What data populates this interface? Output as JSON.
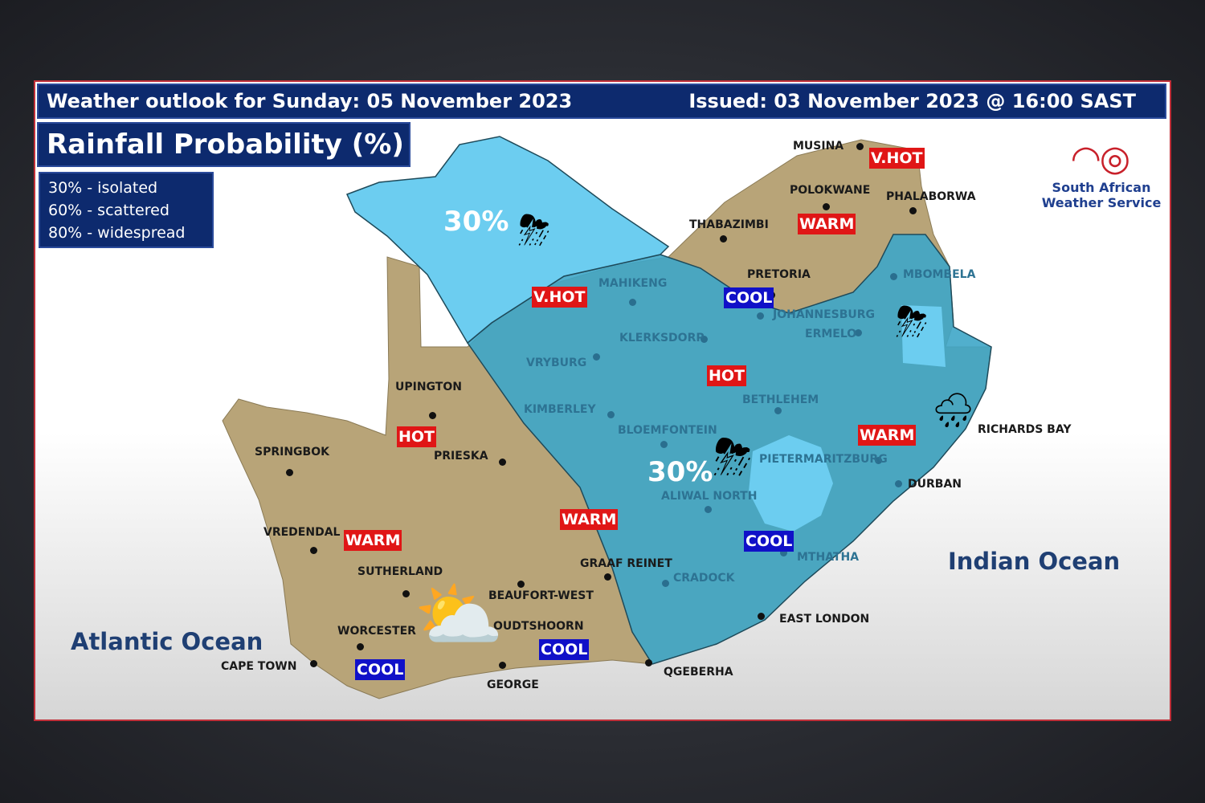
{
  "header": {
    "title": "Weather outlook for Sunday: 05 November 2023",
    "issued": "Issued: 03 November 2023 @ 16:00 SAST"
  },
  "panel_title": "Rainfall Probability (%)",
  "legend": [
    "30% - isolated",
    "60% - scattered",
    "80% - widespread"
  ],
  "rain_areas": [
    {
      "probability": "30%",
      "weather": "isolated thunderstorms"
    },
    {
      "probability": "30%",
      "weather": "isolated thunderstorms"
    }
  ],
  "oceans": [
    "Atlantic Ocean",
    "Indian Ocean"
  ],
  "logo": {
    "line1": "South African",
    "line2": "Weather Service"
  },
  "colors": {
    "land": "#b8a478",
    "rain_30": "#6ccdf0",
    "rain_main": "#3ea6c8",
    "hot": "#e01616",
    "cool": "#1010c8",
    "header": "#0d2a6e"
  },
  "cities": [
    "MUSINA",
    "POLOKWANE",
    "PHALABORWA",
    "THABAZIMBI",
    "PRETORIA",
    "MBOMBELA",
    "JOHANNESBURG",
    "ERMELO",
    "MAHIKENG",
    "KLERKSDORP",
    "VRYBURG",
    "UPINGTON",
    "KIMBERLEY",
    "BETHLEHEM",
    "BLOEMFONTEIN",
    "PIETERMARITZBURG",
    "RICHARDS BAY",
    "SPRINGBOK",
    "PRIESKA",
    "DURBAN",
    "ALIWAL NORTH",
    "MTHATHA",
    "VREDENDAL",
    "GRAAF REINET",
    "SUTHERLAND",
    "CRADOCK",
    "BEAUFORT-WEST",
    "EAST LONDON",
    "OUDTSHOORN",
    "WORCESTER",
    "CAPE TOWN",
    "GEORGE",
    "QGEBERHA"
  ],
  "temperature_badges": [
    "V.HOT",
    "WARM",
    "V.HOT",
    "COOL",
    "HOT",
    "HOT",
    "WARM",
    "WARM",
    "COOL",
    "WARM",
    "COOL",
    "COOL"
  ]
}
